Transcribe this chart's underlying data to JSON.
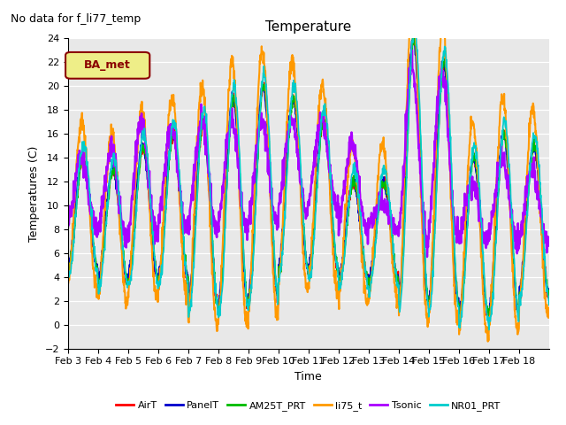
{
  "title": "Temperature",
  "ylabel": "Temperatures (C)",
  "xlabel": "Time",
  "no_data_text": "No data for f_li77_temp",
  "legend_label_text": "BA_met",
  "ylim": [
    -2,
    24
  ],
  "yticks": [
    -2,
    0,
    2,
    4,
    6,
    8,
    10,
    12,
    14,
    16,
    18,
    20,
    22,
    24
  ],
  "xtick_labels": [
    "Feb 3",
    "Feb 4",
    "Feb 5",
    "Feb 6",
    "Feb 7",
    "Feb 8",
    "Feb 9",
    "Feb 10",
    "Feb 11",
    "Feb 12",
    "Feb 13",
    "Feb 14",
    "Feb 15",
    "Feb 16",
    "Feb 17",
    "Feb 18"
  ],
  "series_names": [
    "AirT",
    "PanelT",
    "AM25T_PRT",
    "li75_t",
    "Tsonic",
    "NR01_PRT"
  ],
  "series_colors": [
    "#ff0000",
    "#0000cc",
    "#00bb00",
    "#ff9900",
    "#aa00ff",
    "#00cccc"
  ],
  "series_lw": [
    1.2,
    1.2,
    1.2,
    1.5,
    1.8,
    1.2
  ],
  "bg_color": "#e8e8e8",
  "fig_bg": "#ffffff",
  "legend_box_facecolor": "#eeee88",
  "legend_box_edgecolor": "#8b0000",
  "no_data_fontsize": 9,
  "title_fontsize": 11,
  "axis_fontsize": 9,
  "tick_fontsize": 8
}
